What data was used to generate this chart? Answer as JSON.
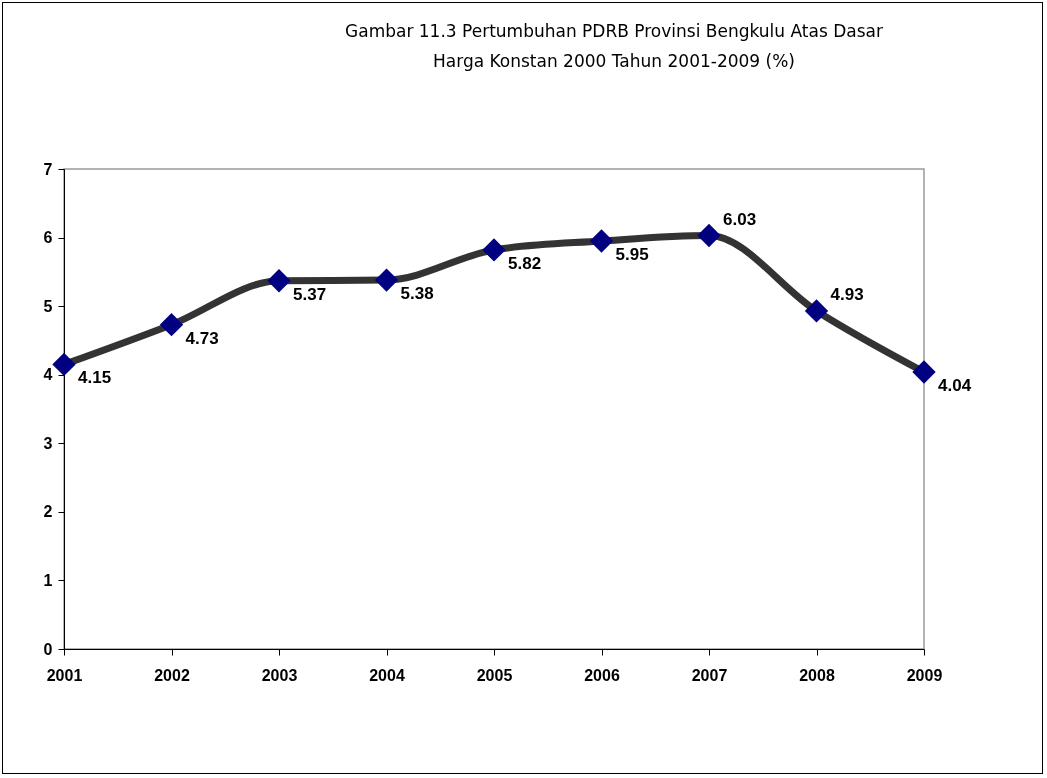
{
  "chart_data": {
    "type": "line",
    "title": "Gambar 11.3  Pertumbuhan PDRB Provinsi Bengkulu Atas Dasar Harga Konstan 2000 Tahun 2001-2009 (%)",
    "categories": [
      "2001",
      "2002",
      "2003",
      "2004",
      "2005",
      "2006",
      "2007",
      "2008",
      "2009"
    ],
    "series": [
      {
        "color": "#333333",
        "values": [
          4.15,
          4.73,
          5.37,
          5.38,
          5.82,
          5.95,
          6.03,
          4.93,
          4.04
        ]
      }
    ],
    "ylim": [
      0,
      7
    ],
    "yticks": [
      0,
      1,
      2,
      3,
      4,
      5,
      6,
      7
    ],
    "grid": false,
    "legend": false,
    "marker": "diamond",
    "line_style": "solid",
    "data_labels": true
  }
}
